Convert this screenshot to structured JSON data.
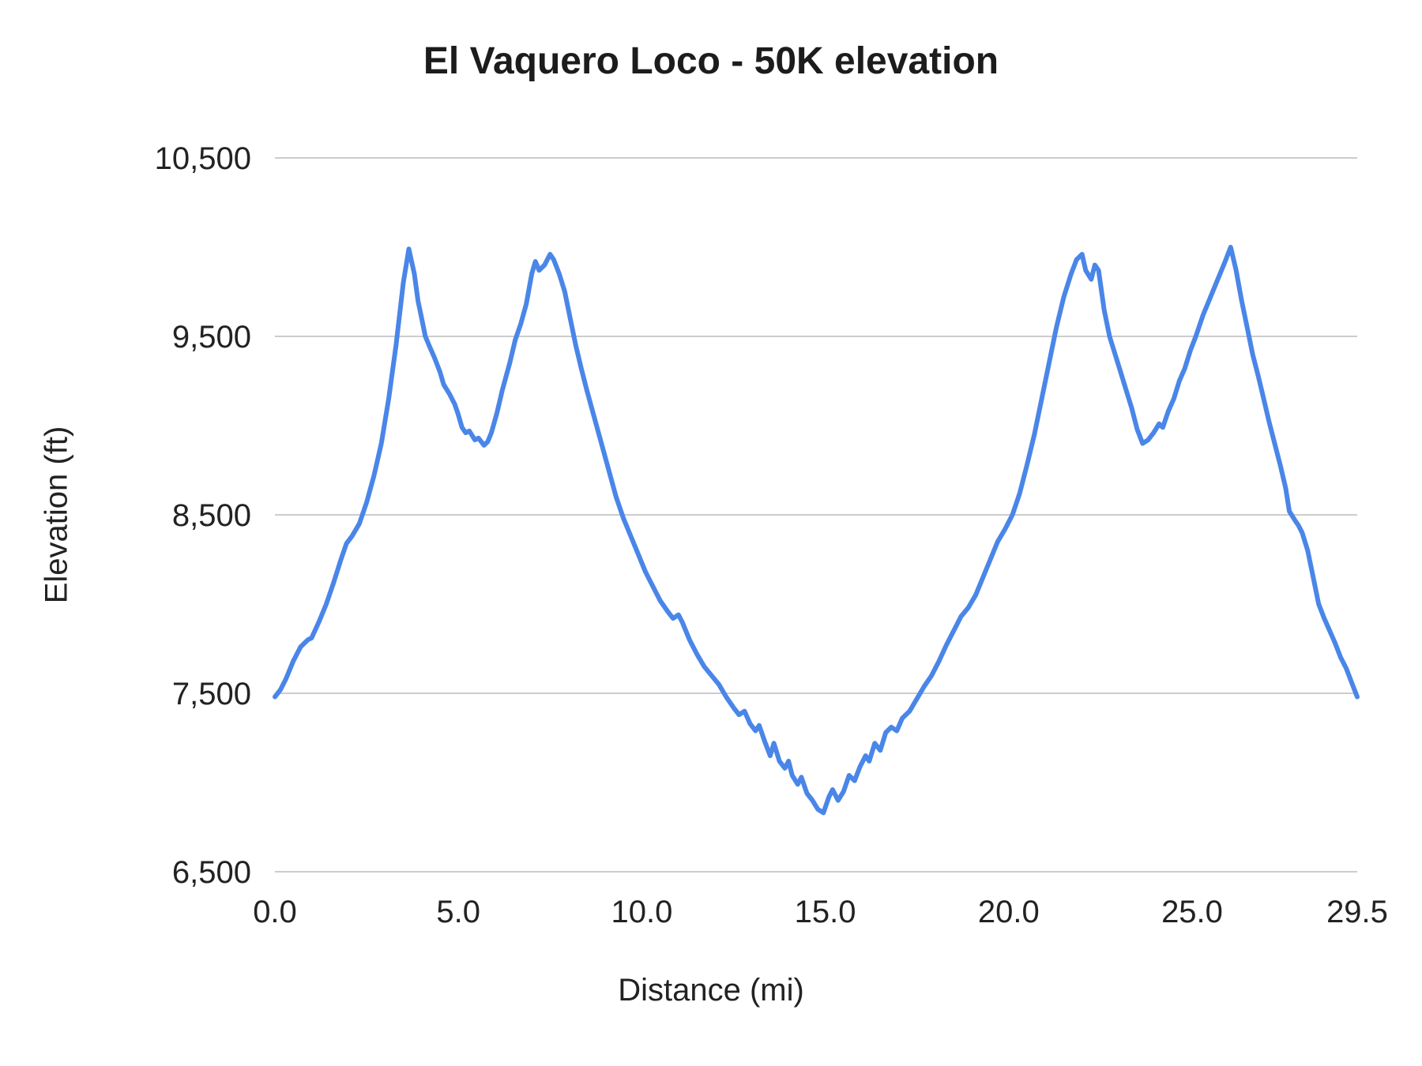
{
  "chart_data": {
    "type": "line",
    "title": "El Vaquero Loco - 50K elevation",
    "xlabel": "Distance (mi)",
    "ylabel": "Elevation (ft)",
    "xlim": [
      0,
      29.5
    ],
    "ylim": [
      6500,
      10500
    ],
    "x_ticks": [
      0,
      5,
      10,
      15,
      20,
      25,
      29.5
    ],
    "x_tick_labels": [
      "0.0",
      "5.0",
      "10.0",
      "15.0",
      "20.0",
      "25.0",
      "29.5"
    ],
    "y_ticks": [
      6500,
      7500,
      8500,
      9500,
      10500
    ],
    "y_tick_labels": [
      "6,500",
      "7,500",
      "8,500",
      "9,500",
      "10,500"
    ],
    "grid": true,
    "legend": "none",
    "line_color": "#4a86e8",
    "grid_color": "#cccccc",
    "text_color": "#222222",
    "series": [
      {
        "name": "elevation",
        "x": [
          0,
          0.15,
          0.3,
          0.5,
          0.7,
          0.9,
          1.0,
          1.2,
          1.4,
          1.6,
          1.8,
          1.95,
          2.1,
          2.3,
          2.5,
          2.7,
          2.9,
          3.1,
          3.3,
          3.5,
          3.65,
          3.8,
          3.9,
          4.0,
          4.1,
          4.2,
          4.35,
          4.5,
          4.6,
          4.75,
          4.9,
          5.0,
          5.1,
          5.2,
          5.3,
          5.45,
          5.55,
          5.7,
          5.8,
          5.9,
          6.05,
          6.2,
          6.4,
          6.55,
          6.7,
          6.85,
          7.0,
          7.1,
          7.2,
          7.35,
          7.5,
          7.6,
          7.75,
          7.9,
          8.05,
          8.2,
          8.35,
          8.5,
          8.7,
          8.9,
          9.1,
          9.3,
          9.5,
          9.7,
          9.9,
          10.1,
          10.3,
          10.5,
          10.7,
          10.85,
          11.0,
          11.1,
          11.3,
          11.5,
          11.7,
          11.9,
          12.1,
          12.3,
          12.5,
          12.65,
          12.8,
          12.95,
          13.1,
          13.2,
          13.35,
          13.5,
          13.6,
          13.75,
          13.9,
          14.0,
          14.1,
          14.25,
          14.35,
          14.5,
          14.65,
          14.8,
          14.95,
          15.1,
          15.2,
          15.35,
          15.5,
          15.65,
          15.8,
          15.95,
          16.1,
          16.2,
          16.35,
          16.5,
          16.65,
          16.8,
          16.95,
          17.1,
          17.3,
          17.5,
          17.7,
          17.9,
          18.1,
          18.3,
          18.5,
          18.7,
          18.9,
          19.1,
          19.3,
          19.5,
          19.7,
          19.9,
          20.1,
          20.3,
          20.5,
          20.7,
          20.9,
          21.1,
          21.3,
          21.5,
          21.7,
          21.85,
          22.0,
          22.1,
          22.25,
          22.35,
          22.45,
          22.6,
          22.75,
          22.9,
          23.05,
          23.2,
          23.35,
          23.5,
          23.65,
          23.8,
          23.95,
          24.1,
          24.2,
          24.35,
          24.5,
          24.65,
          24.8,
          24.95,
          25.1,
          25.3,
          25.5,
          25.7,
          25.9,
          26.05,
          26.2,
          26.35,
          26.5,
          26.65,
          26.8,
          26.95,
          27.1,
          27.25,
          27.4,
          27.55,
          27.65,
          27.8,
          27.9,
          28.0,
          28.15,
          28.3,
          28.45,
          28.6,
          28.75,
          28.9,
          29.05,
          29.2,
          29.35,
          29.5
        ],
        "y": [
          7480,
          7520,
          7580,
          7680,
          7760,
          7800,
          7810,
          7900,
          8000,
          8120,
          8250,
          8340,
          8380,
          8450,
          8570,
          8720,
          8900,
          9150,
          9450,
          9800,
          9990,
          9850,
          9700,
          9600,
          9500,
          9450,
          9380,
          9300,
          9230,
          9180,
          9120,
          9060,
          8990,
          8960,
          8970,
          8920,
          8930,
          8890,
          8910,
          8960,
          9070,
          9200,
          9350,
          9480,
          9570,
          9680,
          9850,
          9920,
          9870,
          9900,
          9960,
          9930,
          9850,
          9750,
          9600,
          9450,
          9320,
          9200,
          9050,
          8900,
          8750,
          8600,
          8480,
          8380,
          8280,
          8180,
          8100,
          8020,
          7960,
          7920,
          7940,
          7900,
          7800,
          7720,
          7650,
          7600,
          7550,
          7480,
          7420,
          7380,
          7400,
          7330,
          7290,
          7320,
          7230,
          7150,
          7220,
          7120,
          7080,
          7120,
          7040,
          6990,
          7030,
          6940,
          6900,
          6850,
          6830,
          6920,
          6960,
          6900,
          6950,
          7040,
          7010,
          7090,
          7150,
          7120,
          7220,
          7180,
          7280,
          7310,
          7290,
          7360,
          7400,
          7470,
          7540,
          7600,
          7680,
          7770,
          7850,
          7930,
          7980,
          8050,
          8150,
          8250,
          8350,
          8420,
          8500,
          8620,
          8780,
          8950,
          9150,
          9350,
          9550,
          9720,
          9850,
          9930,
          9960,
          9870,
          9820,
          9900,
          9870,
          9650,
          9500,
          9400,
          9300,
          9200,
          9100,
          8980,
          8900,
          8920,
          8960,
          9010,
          8990,
          9080,
          9150,
          9250,
          9320,
          9420,
          9500,
          9620,
          9720,
          9820,
          9920,
          10000,
          9870,
          9700,
          9550,
          9400,
          9280,
          9150,
          9020,
          8900,
          8780,
          8650,
          8520,
          8470,
          8440,
          8400,
          8300,
          8150,
          8000,
          7920,
          7850,
          7780,
          7700,
          7640,
          7560,
          7480
        ]
      }
    ]
  }
}
